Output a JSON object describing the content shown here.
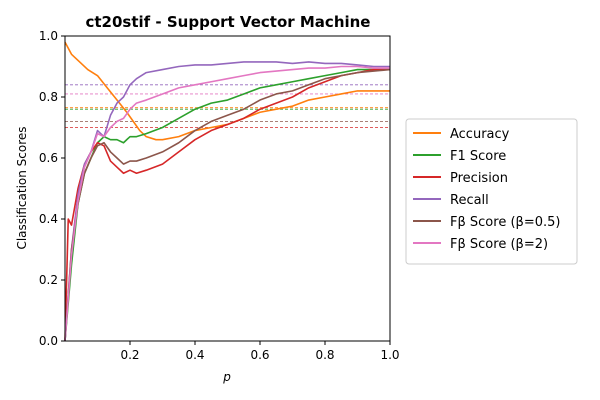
{
  "chart_data": {
    "type": "line",
    "title": "ct20stif - Support Vector Machine",
    "xlabel": "p",
    "ylabel": "Classification Scores",
    "xlim": [
      0.0,
      1.0
    ],
    "ylim": [
      0.0,
      1.0
    ],
    "x_ticks": [
      "0.2",
      "0.4",
      "0.6",
      "0.8",
      "1.0"
    ],
    "y_ticks": [
      "0.0",
      "0.2",
      "0.4",
      "0.6",
      "0.8",
      "1.0"
    ],
    "grid": false,
    "legend_position": "right",
    "series": [
      {
        "name": "Accuracy",
        "color": "#ff7f0e",
        "baseline": 0.765,
        "points": [
          [
            0.0,
            0.98
          ],
          [
            0.02,
            0.94
          ],
          [
            0.05,
            0.91
          ],
          [
            0.07,
            0.89
          ],
          [
            0.1,
            0.87
          ],
          [
            0.13,
            0.83
          ],
          [
            0.16,
            0.79
          ],
          [
            0.19,
            0.75
          ],
          [
            0.21,
            0.72
          ],
          [
            0.23,
            0.69
          ],
          [
            0.25,
            0.67
          ],
          [
            0.28,
            0.66
          ],
          [
            0.3,
            0.66
          ],
          [
            0.35,
            0.67
          ],
          [
            0.4,
            0.69
          ],
          [
            0.45,
            0.7
          ],
          [
            0.5,
            0.71
          ],
          [
            0.55,
            0.73
          ],
          [
            0.6,
            0.75
          ],
          [
            0.65,
            0.76
          ],
          [
            0.7,
            0.77
          ],
          [
            0.75,
            0.79
          ],
          [
            0.8,
            0.8
          ],
          [
            0.85,
            0.81
          ],
          [
            0.9,
            0.82
          ],
          [
            0.95,
            0.82
          ],
          [
            1.0,
            0.82
          ]
        ]
      },
      {
        "name": "F1 Score",
        "color": "#2ca02c",
        "baseline": 0.76,
        "points": [
          [
            0.0,
            0.0
          ],
          [
            0.02,
            0.25
          ],
          [
            0.04,
            0.45
          ],
          [
            0.06,
            0.55
          ],
          [
            0.08,
            0.6
          ],
          [
            0.1,
            0.65
          ],
          [
            0.12,
            0.67
          ],
          [
            0.14,
            0.66
          ],
          [
            0.16,
            0.66
          ],
          [
            0.18,
            0.65
          ],
          [
            0.2,
            0.67
          ],
          [
            0.22,
            0.67
          ],
          [
            0.25,
            0.68
          ],
          [
            0.3,
            0.7
          ],
          [
            0.35,
            0.73
          ],
          [
            0.4,
            0.76
          ],
          [
            0.45,
            0.78
          ],
          [
            0.5,
            0.79
          ],
          [
            0.55,
            0.81
          ],
          [
            0.6,
            0.83
          ],
          [
            0.65,
            0.84
          ],
          [
            0.7,
            0.85
          ],
          [
            0.75,
            0.86
          ],
          [
            0.8,
            0.87
          ],
          [
            0.85,
            0.88
          ],
          [
            0.9,
            0.89
          ],
          [
            0.95,
            0.89
          ],
          [
            1.0,
            0.89
          ]
        ]
      },
      {
        "name": "Precision",
        "color": "#d62728",
        "baseline": 0.7,
        "points": [
          [
            0.0,
            0.0
          ],
          [
            0.01,
            0.4
          ],
          [
            0.02,
            0.38
          ],
          [
            0.04,
            0.5
          ],
          [
            0.06,
            0.58
          ],
          [
            0.08,
            0.62
          ],
          [
            0.1,
            0.65
          ],
          [
            0.12,
            0.64
          ],
          [
            0.14,
            0.59
          ],
          [
            0.16,
            0.57
          ],
          [
            0.18,
            0.55
          ],
          [
            0.2,
            0.56
          ],
          [
            0.22,
            0.55
          ],
          [
            0.25,
            0.56
          ],
          [
            0.3,
            0.58
          ],
          [
            0.35,
            0.62
          ],
          [
            0.4,
            0.66
          ],
          [
            0.45,
            0.69
          ],
          [
            0.5,
            0.71
          ],
          [
            0.55,
            0.73
          ],
          [
            0.6,
            0.76
          ],
          [
            0.65,
            0.78
          ],
          [
            0.7,
            0.8
          ],
          [
            0.75,
            0.83
          ],
          [
            0.8,
            0.85
          ],
          [
            0.85,
            0.87
          ],
          [
            0.9,
            0.88
          ],
          [
            0.95,
            0.89
          ],
          [
            1.0,
            0.89
          ]
        ]
      },
      {
        "name": "Recall",
        "color": "#9467bd",
        "baseline": 0.84,
        "points": [
          [
            0.0,
            0.0
          ],
          [
            0.02,
            0.3
          ],
          [
            0.04,
            0.48
          ],
          [
            0.06,
            0.58
          ],
          [
            0.08,
            0.62
          ],
          [
            0.1,
            0.69
          ],
          [
            0.12,
            0.67
          ],
          [
            0.14,
            0.74
          ],
          [
            0.16,
            0.78
          ],
          [
            0.18,
            0.8
          ],
          [
            0.2,
            0.84
          ],
          [
            0.22,
            0.86
          ],
          [
            0.25,
            0.88
          ],
          [
            0.3,
            0.89
          ],
          [
            0.35,
            0.9
          ],
          [
            0.4,
            0.905
          ],
          [
            0.45,
            0.905
          ],
          [
            0.5,
            0.91
          ],
          [
            0.55,
            0.915
          ],
          [
            0.6,
            0.915
          ],
          [
            0.65,
            0.915
          ],
          [
            0.7,
            0.91
          ],
          [
            0.75,
            0.915
          ],
          [
            0.8,
            0.91
          ],
          [
            0.85,
            0.91
          ],
          [
            0.9,
            0.905
          ],
          [
            0.95,
            0.9
          ],
          [
            1.0,
            0.9
          ]
        ]
      },
      {
        "name": "Fβ Score (β=0.5)",
        "color": "#8c564b",
        "baseline": 0.72,
        "points": [
          [
            0.0,
            0.0
          ],
          [
            0.02,
            0.3
          ],
          [
            0.04,
            0.45
          ],
          [
            0.06,
            0.55
          ],
          [
            0.08,
            0.6
          ],
          [
            0.1,
            0.64
          ],
          [
            0.12,
            0.65
          ],
          [
            0.14,
            0.62
          ],
          [
            0.16,
            0.6
          ],
          [
            0.18,
            0.58
          ],
          [
            0.2,
            0.59
          ],
          [
            0.22,
            0.59
          ],
          [
            0.25,
            0.6
          ],
          [
            0.3,
            0.62
          ],
          [
            0.35,
            0.65
          ],
          [
            0.4,
            0.69
          ],
          [
            0.45,
            0.72
          ],
          [
            0.5,
            0.74
          ],
          [
            0.55,
            0.76
          ],
          [
            0.6,
            0.79
          ],
          [
            0.65,
            0.81
          ],
          [
            0.7,
            0.82
          ],
          [
            0.75,
            0.84
          ],
          [
            0.8,
            0.86
          ],
          [
            0.85,
            0.87
          ],
          [
            0.9,
            0.88
          ],
          [
            0.95,
            0.885
          ],
          [
            1.0,
            0.89
          ]
        ]
      },
      {
        "name": "Fβ Score (β=2)",
        "color": "#e377c2",
        "baseline": 0.81,
        "points": [
          [
            0.0,
            0.0
          ],
          [
            0.02,
            0.28
          ],
          [
            0.04,
            0.46
          ],
          [
            0.06,
            0.57
          ],
          [
            0.08,
            0.62
          ],
          [
            0.1,
            0.68
          ],
          [
            0.12,
            0.67
          ],
          [
            0.14,
            0.7
          ],
          [
            0.16,
            0.72
          ],
          [
            0.18,
            0.73
          ],
          [
            0.2,
            0.76
          ],
          [
            0.22,
            0.78
          ],
          [
            0.25,
            0.79
          ],
          [
            0.3,
            0.81
          ],
          [
            0.35,
            0.83
          ],
          [
            0.4,
            0.84
          ],
          [
            0.45,
            0.85
          ],
          [
            0.5,
            0.86
          ],
          [
            0.55,
            0.87
          ],
          [
            0.6,
            0.88
          ],
          [
            0.65,
            0.885
          ],
          [
            0.7,
            0.89
          ],
          [
            0.75,
            0.895
          ],
          [
            0.8,
            0.895
          ],
          [
            0.85,
            0.9
          ],
          [
            0.9,
            0.9
          ],
          [
            0.95,
            0.895
          ],
          [
            1.0,
            0.895
          ]
        ]
      }
    ]
  }
}
